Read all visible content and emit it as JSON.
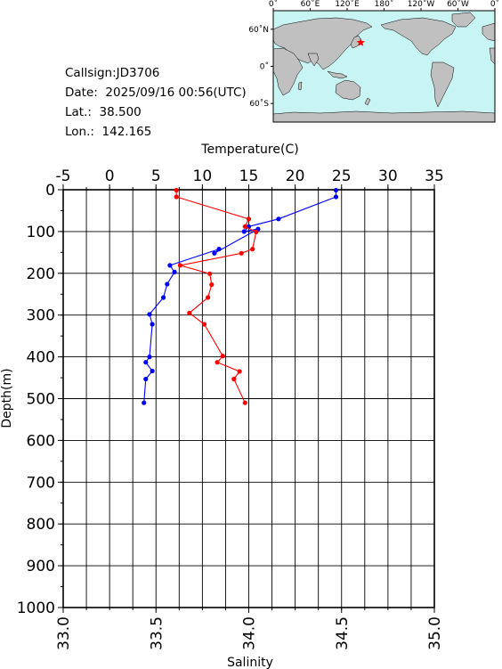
{
  "station": {
    "callsign": "Callsign:JD3706",
    "date": "Date:  2025/09/16 00:56(UTC)",
    "lat": "Lat.:  38.500",
    "lon": "Lon.:  142.165"
  },
  "map": {
    "lon_ticks": [
      "0˚",
      "60˚E",
      "120˚E",
      "180˚",
      "120˚W",
      "60˚W",
      "0˚"
    ],
    "lat_ticks": [
      "60˚N",
      "0˚",
      "60˚S"
    ],
    "station_lon": 142.165,
    "station_lat": 38.5,
    "ocean_color": "#c9f4f4",
    "land_color": "#c0c0c0",
    "marker_color": "#ff0000"
  },
  "chart_data": {
    "type": "line",
    "title": "",
    "x_top_label": "Temperature(C)",
    "x_top_ticks": [
      "-5",
      "0",
      "5",
      "10",
      "15",
      "20",
      "25",
      "30",
      "35"
    ],
    "x_top_range": [
      -5,
      35
    ],
    "x_bottom_label": "Salinity",
    "x_bottom_ticks": [
      "33.0",
      "33.5",
      "34.0",
      "34.5",
      "35.0"
    ],
    "x_bottom_range": [
      33.0,
      35.0
    ],
    "ylabel": "Depth(m)",
    "y_ticks": [
      "0",
      "100",
      "200",
      "300",
      "400",
      "500",
      "600",
      "700",
      "800",
      "900",
      "1000"
    ],
    "y_range": [
      0,
      1000
    ],
    "y_reversed": true,
    "grid": true,
    "series": [
      {
        "name": "Temperature",
        "axis": "top",
        "color": "#0000ff",
        "points": [
          [
            24.4,
            1
          ],
          [
            24.4,
            17
          ],
          [
            18.2,
            70
          ],
          [
            15.0,
            88
          ],
          [
            14.5,
            100
          ],
          [
            16.0,
            94
          ],
          [
            11.3,
            152
          ],
          [
            11.8,
            142
          ],
          [
            6.5,
            181
          ],
          [
            7.0,
            197
          ],
          [
            6.2,
            226
          ],
          [
            5.8,
            258
          ],
          [
            4.3,
            298
          ],
          [
            4.6,
            322
          ],
          [
            4.3,
            400
          ],
          [
            3.9,
            413
          ],
          [
            4.6,
            434
          ],
          [
            3.9,
            453
          ],
          [
            3.7,
            510
          ]
        ]
      },
      {
        "name": "Salinity",
        "axis": "bottom",
        "color": "#ff0000",
        "points": [
          [
            33.61,
            1
          ],
          [
            33.61,
            17
          ],
          [
            34.0,
            70
          ],
          [
            33.98,
            88
          ],
          [
            34.04,
            101
          ],
          [
            34.02,
            142
          ],
          [
            33.96,
            152
          ],
          [
            33.63,
            181
          ],
          [
            33.79,
            201
          ],
          [
            33.8,
            227
          ],
          [
            33.78,
            258
          ],
          [
            33.68,
            295
          ],
          [
            33.76,
            322
          ],
          [
            33.86,
            398
          ],
          [
            33.83,
            413
          ],
          [
            33.95,
            435
          ],
          [
            33.92,
            453
          ],
          [
            33.98,
            510
          ]
        ]
      }
    ]
  }
}
